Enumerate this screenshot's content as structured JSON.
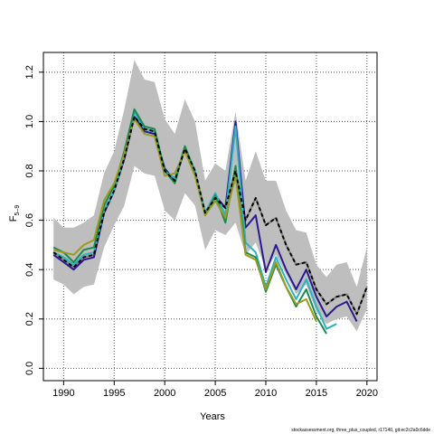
{
  "chart_data": {
    "type": "line",
    "xlabel": "Years",
    "ylabel_main": "F",
    "ylabel_sub": "5–9",
    "footnote": "stockassessment.org, three_plus_coupled, r17140, git:ec2c2a0c6dde",
    "xlim": [
      1988,
      2021
    ],
    "ylim": [
      -0.05,
      1.28
    ],
    "x_ticks": [
      1990,
      1995,
      2000,
      2005,
      2010,
      2015,
      2020
    ],
    "y_ticks": [
      0.0,
      0.2,
      0.4,
      0.6,
      0.8,
      1.0,
      1.2
    ],
    "x_tick_labels": [
      "1990",
      "1995",
      "2000",
      "2005",
      "2010",
      "2015",
      "2020"
    ],
    "y_tick_labels": [
      "0.0",
      "0.2",
      "0.4",
      "0.6",
      "0.8",
      "1.0",
      "1.2"
    ],
    "grid": true,
    "band": {
      "x": [
        1989,
        1990,
        1991,
        1992,
        1993,
        1994,
        1995,
        1996,
        1997,
        1998,
        1999,
        2000,
        2001,
        2002,
        2003,
        2004,
        2005,
        2006,
        2007,
        2008,
        2009,
        2010,
        2011,
        2012,
        2013,
        2014,
        2015,
        2016,
        2017,
        2018,
        2019,
        2020
      ],
      "upper": [
        0.61,
        0.57,
        0.57,
        0.59,
        0.62,
        0.79,
        0.88,
        1.05,
        1.25,
        1.17,
        1.16,
        1.01,
        0.95,
        1.09,
        1.0,
        0.76,
        0.83,
        0.8,
        1.04,
        0.76,
        0.88,
        0.76,
        0.76,
        0.64,
        0.56,
        0.55,
        0.42,
        0.37,
        0.42,
        0.43,
        0.33,
        0.49
      ],
      "lower": [
        0.36,
        0.34,
        0.3,
        0.33,
        0.34,
        0.49,
        0.58,
        0.66,
        0.82,
        0.79,
        0.78,
        0.64,
        0.6,
        0.71,
        0.66,
        0.48,
        0.56,
        0.54,
        0.59,
        0.46,
        0.51,
        0.4,
        0.46,
        0.38,
        0.3,
        0.34,
        0.23,
        0.18,
        0.2,
        0.21,
        0.15,
        0.24
      ],
      "color": "#bebebe"
    },
    "series": [
      {
        "color": "#7f7f7f",
        "width": 2,
        "dash": "",
        "x": [
          1989,
          1990,
          1991,
          1992,
          1993,
          1994,
          1995,
          1996,
          1997,
          1998,
          1999,
          2000,
          2001,
          2002,
          2003,
          2004,
          2005,
          2006,
          2007,
          2008,
          2009,
          2010,
          2011,
          2012,
          2013,
          2014,
          2015,
          2016,
          2017,
          2018,
          2019,
          2020
        ],
        "y": [
          0.47,
          0.44,
          0.41,
          0.45,
          0.46,
          0.63,
          0.72,
          0.85,
          1.02,
          0.97,
          0.96,
          0.8,
          0.76,
          0.89,
          0.8,
          0.63,
          0.69,
          0.65,
          0.8,
          0.6,
          0.69,
          0.58,
          0.61,
          0.5,
          0.42,
          0.43,
          0.32,
          0.26,
          0.29,
          0.3,
          0.22,
          0.33
        ]
      },
      {
        "color": "#2a1a8f",
        "width": 2,
        "dash": "",
        "x": [
          1989,
          1990,
          1991,
          1992,
          1993,
          1994,
          1995,
          1996,
          1997,
          1998,
          1999,
          2000,
          2001,
          2002,
          2003,
          2004,
          2005,
          2006,
          2007,
          2008,
          2009,
          2010,
          2011,
          2012,
          2013,
          2014,
          2015,
          2016,
          2017,
          2018,
          2019
        ],
        "y": [
          0.46,
          0.43,
          0.4,
          0.44,
          0.45,
          0.63,
          0.72,
          0.85,
          1.02,
          0.96,
          0.95,
          0.81,
          0.76,
          0.89,
          0.79,
          0.63,
          0.7,
          0.65,
          1.0,
          0.57,
          0.62,
          0.39,
          0.5,
          0.4,
          0.32,
          0.4,
          0.29,
          0.21,
          0.25,
          0.27,
          0.19
        ]
      },
      {
        "color": "#2ab3c0",
        "width": 2,
        "dash": "",
        "x": [
          1989,
          1990,
          1991,
          1992,
          1993,
          1994,
          1995,
          1996,
          1997,
          1998,
          1999,
          2000,
          2001,
          2002,
          2003,
          2004,
          2005,
          2006,
          2007,
          2008,
          2009,
          2010,
          2011,
          2012,
          2013,
          2014,
          2015,
          2016,
          2017
        ],
        "y": [
          0.47,
          0.45,
          0.42,
          0.46,
          0.47,
          0.64,
          0.72,
          0.86,
          1.04,
          0.97,
          0.96,
          0.8,
          0.77,
          0.9,
          0.8,
          0.63,
          0.71,
          0.62,
          0.98,
          0.51,
          0.47,
          0.33,
          0.45,
          0.36,
          0.28,
          0.36,
          0.25,
          0.16,
          0.18
        ]
      },
      {
        "color": "#1a8a4f",
        "width": 2,
        "dash": "",
        "x": [
          1989,
          1990,
          1991,
          1992,
          1993,
          1994,
          1995,
          1996,
          1997,
          1998,
          1999,
          2000,
          2001,
          2002,
          2003,
          2004,
          2005,
          2006,
          2007,
          2008,
          2009,
          2010,
          2011,
          2012,
          2013,
          2014,
          2015,
          2016
        ],
        "y": [
          0.49,
          0.47,
          0.43,
          0.48,
          0.49,
          0.66,
          0.74,
          0.88,
          1.05,
          0.98,
          0.97,
          0.8,
          0.75,
          0.9,
          0.79,
          0.62,
          0.7,
          0.59,
          0.82,
          0.47,
          0.45,
          0.31,
          0.42,
          0.33,
          0.25,
          0.32,
          0.21,
          0.14
        ]
      },
      {
        "color": "#9a9a1e",
        "width": 2,
        "dash": "",
        "x": [
          1989,
          1990,
          1991,
          1992,
          1993,
          1994,
          1995,
          1996,
          1997,
          1998,
          1999,
          2000,
          2001,
          2002,
          2003,
          2004,
          2005,
          2006,
          2007,
          2008,
          2009,
          2010,
          2011,
          2012,
          2013,
          2014,
          2015
        ],
        "y": [
          0.48,
          0.47,
          0.46,
          0.5,
          0.52,
          0.68,
          0.75,
          0.87,
          1.01,
          0.95,
          0.94,
          0.78,
          0.79,
          0.88,
          0.78,
          0.62,
          0.68,
          0.61,
          0.78,
          0.46,
          0.44,
          0.32,
          0.43,
          0.33,
          0.26,
          0.28,
          0.19
        ]
      },
      {
        "color": "#000000",
        "width": 2,
        "dash": "4,3",
        "x": [
          1989,
          1990,
          1991,
          1992,
          1993,
          1994,
          1995,
          1996,
          1997,
          1998,
          1999,
          2000,
          2001,
          2002,
          2003,
          2004,
          2005,
          2006,
          2007,
          2008,
          2009,
          2010,
          2011,
          2012,
          2013,
          2014,
          2015,
          2016,
          2017,
          2018,
          2019,
          2020
        ],
        "y": [
          0.47,
          0.44,
          0.41,
          0.45,
          0.46,
          0.63,
          0.72,
          0.85,
          1.02,
          0.97,
          0.96,
          0.8,
          0.76,
          0.89,
          0.8,
          0.63,
          0.69,
          0.65,
          0.8,
          0.6,
          0.69,
          0.58,
          0.61,
          0.5,
          0.42,
          0.43,
          0.32,
          0.26,
          0.29,
          0.3,
          0.22,
          0.33
        ]
      }
    ]
  }
}
